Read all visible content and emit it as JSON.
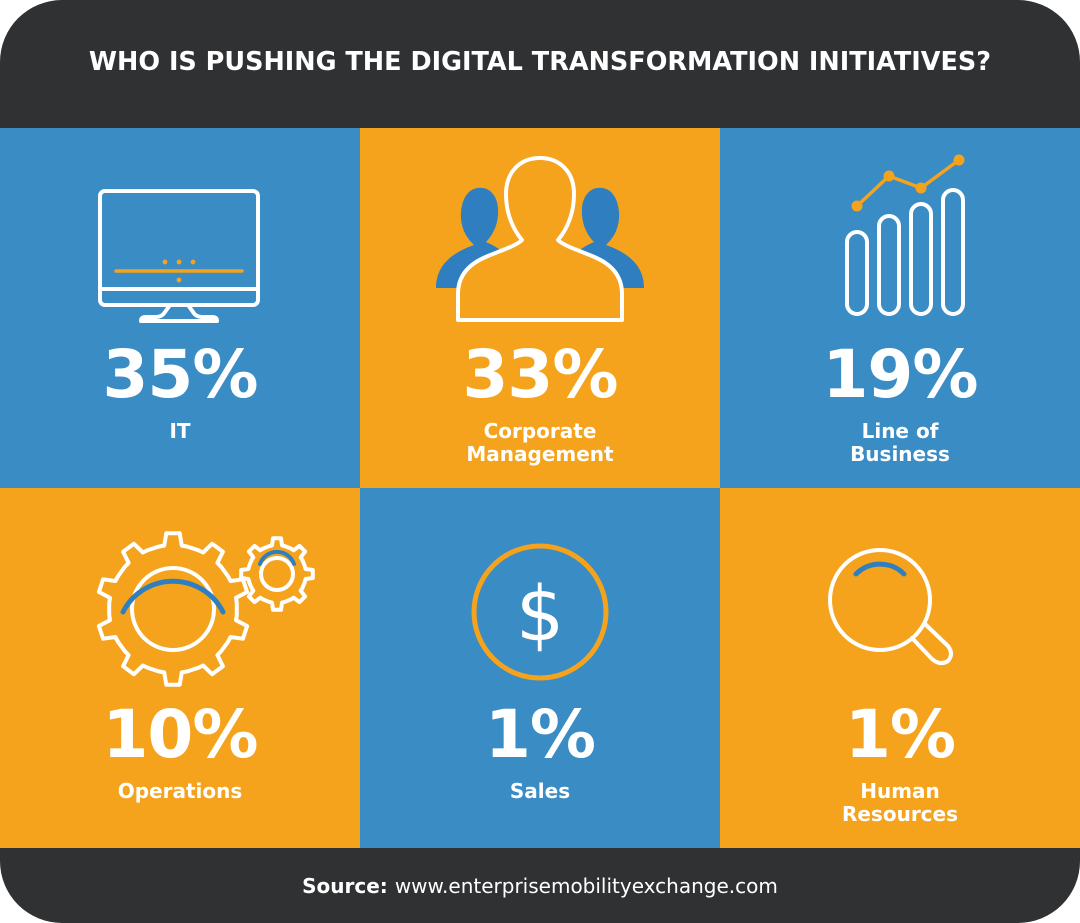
{
  "title": "WHO IS PUSHING THE DIGITAL TRANSFORMATION INITIATIVES?",
  "colors": {
    "background": "#2f3133",
    "blue": "#3a8cc4",
    "orange": "#f5a31c",
    "text": "#ffffff"
  },
  "chart_data": {
    "type": "table",
    "title": "WHO IS PUSHING THE DIGITAL TRANSFORMATION INITIATIVES?",
    "unit": "%",
    "categories": [
      "IT",
      "Corporate Management",
      "Line of Business",
      "Operations",
      "Sales",
      "Human Resources"
    ],
    "values": [
      35,
      33,
      19,
      10,
      1,
      1
    ],
    "tiles": [
      {
        "percent": "35%",
        "label_lines": [
          "IT"
        ],
        "color": "blue",
        "icon": "monitor-icon"
      },
      {
        "percent": "33%",
        "label_lines": [
          "Corporate",
          "Management"
        ],
        "color": "orange",
        "icon": "people-icon"
      },
      {
        "percent": "19%",
        "label_lines": [
          "Line of",
          "Business"
        ],
        "color": "blue",
        "icon": "bar-chart-icon"
      },
      {
        "percent": "10%",
        "label_lines": [
          "Operations"
        ],
        "color": "orange",
        "icon": "gears-icon"
      },
      {
        "percent": "1%",
        "label_lines": [
          "Sales"
        ],
        "color": "blue",
        "icon": "dollar-icon"
      },
      {
        "percent": "1%",
        "label_lines": [
          "Human",
          "Resources"
        ],
        "color": "orange",
        "icon": "magnifier-icon"
      }
    ]
  },
  "footer": {
    "source_label": "Source:",
    "source_url": "www.enterprisemobilityexchange.com"
  }
}
